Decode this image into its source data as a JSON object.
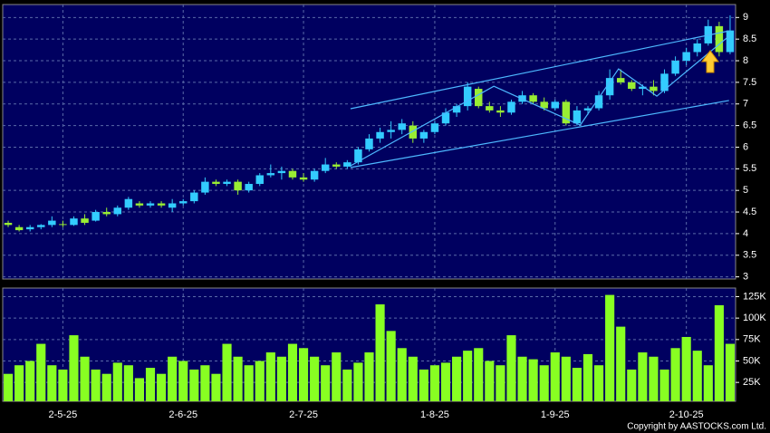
{
  "chart_data": [
    {
      "type": "candlestick",
      "up_color": "#33ccff",
      "down_color": "#99ee33",
      "line_color": "#4db8ff",
      "ylim": [
        2.95,
        9.3
      ],
      "yticks": [
        3,
        3.5,
        4,
        4.5,
        5,
        5.5,
        6,
        6.5,
        7,
        7.5,
        8,
        8.5,
        9
      ],
      "grid": true,
      "candles": [
        [
          4.25,
          4.3,
          4.15,
          4.2
        ],
        [
          4.15,
          4.2,
          4.05,
          4.08
        ],
        [
          4.1,
          4.2,
          4.05,
          4.15
        ],
        [
          4.15,
          4.22,
          4.1,
          4.2
        ],
        [
          4.2,
          4.4,
          4.15,
          4.3
        ],
        [
          4.22,
          4.3,
          4.15,
          4.2
        ],
        [
          4.2,
          4.4,
          4.18,
          4.35
        ],
        [
          4.35,
          4.45,
          4.2,
          4.25
        ],
        [
          4.3,
          4.55,
          4.28,
          4.5
        ],
        [
          4.5,
          4.6,
          4.4,
          4.45
        ],
        [
          4.45,
          4.65,
          4.4,
          4.6
        ],
        [
          4.6,
          4.85,
          4.55,
          4.8
        ],
        [
          4.7,
          4.75,
          4.6,
          4.65
        ],
        [
          4.65,
          4.75,
          4.6,
          4.7
        ],
        [
          4.7,
          4.75,
          4.6,
          4.65
        ],
        [
          4.6,
          4.8,
          4.5,
          4.7
        ],
        [
          4.7,
          4.8,
          4.65,
          4.75
        ],
        [
          4.75,
          5.0,
          4.7,
          4.95
        ],
        [
          4.95,
          5.3,
          4.9,
          5.2
        ],
        [
          5.2,
          5.25,
          5.1,
          5.15
        ],
        [
          5.15,
          5.25,
          5.1,
          5.2
        ],
        [
          5.2,
          5.25,
          4.9,
          5.0
        ],
        [
          5.0,
          5.2,
          4.95,
          5.15
        ],
        [
          5.15,
          5.4,
          5.1,
          5.35
        ],
        [
          5.35,
          5.6,
          5.3,
          5.4
        ],
        [
          5.4,
          5.55,
          5.25,
          5.45
        ],
        [
          5.45,
          5.5,
          5.25,
          5.3
        ],
        [
          5.3,
          5.4,
          5.2,
          5.25
        ],
        [
          5.25,
          5.5,
          5.2,
          5.45
        ],
        [
          5.45,
          5.75,
          5.4,
          5.6
        ],
        [
          5.6,
          5.65,
          5.5,
          5.55
        ],
        [
          5.55,
          5.7,
          5.5,
          5.65
        ],
        [
          5.65,
          6.0,
          5.6,
          5.95
        ],
        [
          5.95,
          6.3,
          5.9,
          6.2
        ],
        [
          6.2,
          6.45,
          6.1,
          6.35
        ],
        [
          6.35,
          6.6,
          6.2,
          6.4
        ],
        [
          6.4,
          6.65,
          6.3,
          6.55
        ],
        [
          6.5,
          6.6,
          6.1,
          6.2
        ],
        [
          6.2,
          6.4,
          6.1,
          6.35
        ],
        [
          6.35,
          6.6,
          6.3,
          6.55
        ],
        [
          6.55,
          6.9,
          6.5,
          6.8
        ],
        [
          6.8,
          7.0,
          6.7,
          6.95
        ],
        [
          6.95,
          7.5,
          6.85,
          7.4
        ],
        [
          7.35,
          7.4,
          6.9,
          6.95
        ],
        [
          6.95,
          7.05,
          6.8,
          6.85
        ],
        [
          6.85,
          6.95,
          6.7,
          6.8
        ],
        [
          6.8,
          7.1,
          6.75,
          7.05
        ],
        [
          7.05,
          7.3,
          7.0,
          7.2
        ],
        [
          7.2,
          7.25,
          7.0,
          7.05
        ],
        [
          7.05,
          7.15,
          6.85,
          6.9
        ],
        [
          6.9,
          7.1,
          6.85,
          7.05
        ],
        [
          7.05,
          7.1,
          6.5,
          6.55
        ],
        [
          6.55,
          6.95,
          6.5,
          6.85
        ],
        [
          6.85,
          6.95,
          6.75,
          6.9
        ],
        [
          6.9,
          7.3,
          6.85,
          7.2
        ],
        [
          7.2,
          7.8,
          7.1,
          7.6
        ],
        [
          7.6,
          7.8,
          7.45,
          7.5
        ],
        [
          7.5,
          7.55,
          7.3,
          7.35
        ],
        [
          7.35,
          7.45,
          7.2,
          7.4
        ],
        [
          7.4,
          7.55,
          7.2,
          7.3
        ],
        [
          7.3,
          7.8,
          7.25,
          7.7
        ],
        [
          7.7,
          8.1,
          7.65,
          8.0
        ],
        [
          8.0,
          8.3,
          7.9,
          8.2
        ],
        [
          8.2,
          8.5,
          8.1,
          8.4
        ],
        [
          8.4,
          8.95,
          8.35,
          8.8
        ],
        [
          8.8,
          8.9,
          8.1,
          8.2
        ],
        [
          8.2,
          9.05,
          8.15,
          8.7
        ]
      ],
      "trendlines": [
        {
          "x": [
            31.3,
            65.9
          ],
          "y": [
            6.89,
            8.69
          ]
        },
        {
          "x": [
            31.3,
            65.9
          ],
          "y": [
            5.53,
            7.08
          ]
        },
        {
          "x": [
            31.3,
            44.4,
            52.3,
            55.8,
            59.3,
            65.9
          ],
          "y": [
            5.57,
            7.41,
            6.51,
            7.81,
            7.18,
            8.57
          ]
        }
      ]
    },
    {
      "type": "bar",
      "color": "#88ff22",
      "ylim": [
        3000,
        135000
      ],
      "grid": true,
      "yticks": [
        {
          "value": 25000,
          "label": "25K"
        },
        {
          "value": 50000,
          "label": "50K"
        },
        {
          "value": 75000,
          "label": "75K"
        },
        {
          "value": 100000,
          "label": "100K"
        },
        {
          "value": 125000,
          "label": "125K"
        }
      ],
      "values": [
        35000,
        45000,
        50000,
        70000,
        45000,
        40000,
        80000,
        55000,
        40000,
        35000,
        48000,
        45000,
        30000,
        42000,
        35000,
        55000,
        50000,
        40000,
        45000,
        35000,
        70000,
        55000,
        45000,
        50000,
        60000,
        55000,
        70000,
        65000,
        55000,
        45000,
        60000,
        40000,
        48000,
        60000,
        116000,
        85000,
        65000,
        55000,
        40000,
        45000,
        48000,
        55000,
        62000,
        65000,
        50000,
        45000,
        80000,
        55000,
        52000,
        45000,
        60000,
        55000,
        42000,
        58000,
        45000,
        127000,
        90000,
        40000,
        60000,
        55000,
        40000,
        65000,
        78000,
        62000,
        45000,
        115000,
        70000
      ],
      "xticks": [
        {
          "value": 5,
          "label": "2-5-25"
        },
        {
          "value": 16,
          "label": "2-6-25"
        },
        {
          "value": 27,
          "label": "2-7-25"
        },
        {
          "value": 39,
          "label": "1-8-25"
        },
        {
          "value": 50,
          "label": "1-9-25"
        },
        {
          "value": 62,
          "label": "2-10-25"
        }
      ],
      "footer": "Copyright by AASTOCKS.com Ltd."
    }
  ]
}
